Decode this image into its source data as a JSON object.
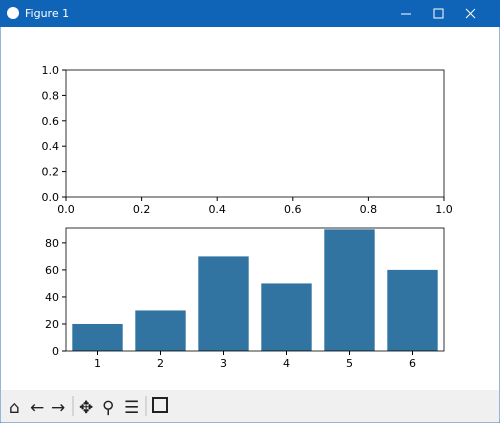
{
  "window": {
    "title": "Figure 1"
  },
  "chart_data": [
    {
      "type": "line",
      "xlim": [
        0,
        1
      ],
      "ylim": [
        0,
        1
      ],
      "xticks": [
        {
          "value": 0,
          "label": "0.0"
        },
        {
          "value": 0.2,
          "label": "0.2"
        },
        {
          "value": 0.4,
          "label": "0.4"
        },
        {
          "value": 0.6,
          "label": "0.6"
        },
        {
          "value": 0.8,
          "label": "0.8"
        },
        {
          "value": 1,
          "label": "1.0"
        }
      ],
      "yticks": [
        {
          "value": 0,
          "label": "0.0"
        },
        {
          "value": 0.2,
          "label": "0.2"
        },
        {
          "value": 0.4,
          "label": "0.4"
        },
        {
          "value": 0.6,
          "label": "0.6"
        },
        {
          "value": 0.8,
          "label": "0.8"
        },
        {
          "value": 1,
          "label": "1.0"
        }
      ]
    },
    {
      "type": "bar",
      "x": [
        1,
        2,
        3,
        4,
        5,
        6
      ],
      "values": [
        20,
        30,
        70,
        50,
        90,
        60
      ],
      "color": "#3274a1",
      "xlim": [
        0.5,
        6.5
      ],
      "ylim": [
        0,
        91
      ],
      "xticks": [
        1,
        2,
        3,
        4,
        5,
        6
      ],
      "yticks": [
        0,
        20,
        40,
        60,
        80
      ]
    }
  ]
}
